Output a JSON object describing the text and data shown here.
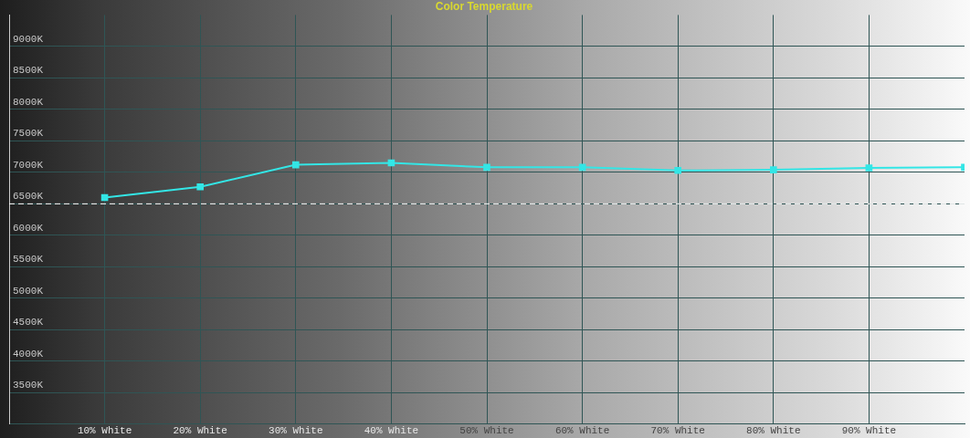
{
  "chart_data": {
    "type": "line",
    "title": "Color Temperature",
    "x": [
      10,
      20,
      30,
      40,
      50,
      60,
      70,
      80,
      90,
      100
    ],
    "series": [
      {
        "color": "#33e6e6",
        "values": [
          6600,
          6770,
          7120,
          7150,
          7080,
          7080,
          7030,
          7040,
          7070,
          7080
        ]
      }
    ],
    "xlim": [
      0,
      100
    ],
    "xticks": [
      {
        "value": 10,
        "label": "10% White"
      },
      {
        "value": 20,
        "label": "20% White"
      },
      {
        "value": 30,
        "label": "30% White"
      },
      {
        "value": 40,
        "label": "40% White"
      },
      {
        "value": 50,
        "label": "50% White"
      },
      {
        "value": 60,
        "label": "60% White"
      },
      {
        "value": 70,
        "label": "70% White"
      },
      {
        "value": 80,
        "label": "80% White"
      },
      {
        "value": 90,
        "label": "90% White"
      }
    ],
    "ylim": [
      3000,
      9500
    ],
    "yticks": [
      {
        "value": 3500,
        "label": "3500K"
      },
      {
        "value": 4000,
        "label": "4000K"
      },
      {
        "value": 4500,
        "label": "4500K"
      },
      {
        "value": 5000,
        "label": "5000K"
      },
      {
        "value": 5500,
        "label": "5500K"
      },
      {
        "value": 6000,
        "label": "6000K"
      },
      {
        "value": 6500,
        "label": "6500K"
      },
      {
        "value": 7000,
        "label": "7000K"
      },
      {
        "value": 7500,
        "label": "7500K"
      },
      {
        "value": 8000,
        "label": "8000K"
      },
      {
        "value": 8500,
        "label": "8500K"
      },
      {
        "value": 9000,
        "label": "9000K"
      }
    ],
    "ref_lines": [
      {
        "axis": "y",
        "value": 6500,
        "color": "#ffffff",
        "line_style": "dashed"
      }
    ],
    "grid": true,
    "marker": "square",
    "line_style": "solid",
    "legend": false
  }
}
